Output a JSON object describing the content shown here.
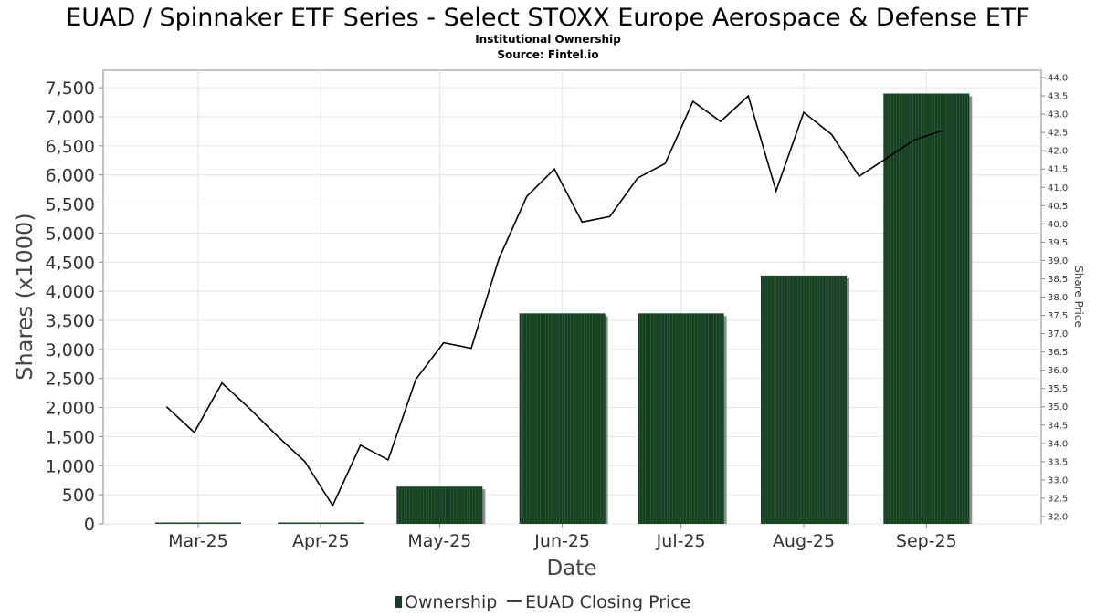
{
  "chart_data": {
    "type": "bar",
    "title": "EUAD / Spinnaker ETF Series - Select STOXX Europe Aerospace & Defense ETF",
    "subtitle_1": "Institutional Ownership",
    "subtitle_2": "Source: Fintel.io",
    "xlabel": "Date",
    "ylabel": "Shares (x1000)",
    "y2label": "Share Price",
    "ylim": [
      0,
      7800
    ],
    "y2lim": [
      31.8,
      44.2
    ],
    "y_ticks": [
      0,
      500,
      1000,
      1500,
      2000,
      2500,
      3000,
      3500,
      4000,
      4500,
      5000,
      5500,
      6000,
      6500,
      7000,
      7500
    ],
    "y_tick_labels": [
      "0",
      "500",
      "1,000",
      "1,500",
      "2,000",
      "2,500",
      "3,000",
      "3,500",
      "4,000",
      "4,500",
      "5,000",
      "5,500",
      "6,000",
      "6,500",
      "7,000",
      "7,500"
    ],
    "y2_ticks": [
      32.0,
      32.5,
      33.0,
      33.5,
      34.0,
      34.5,
      35.0,
      35.5,
      36.0,
      36.5,
      37.0,
      37.5,
      38.0,
      38.5,
      39.0,
      39.5,
      40.0,
      40.5,
      41.0,
      41.5,
      42.0,
      42.5,
      43.0,
      43.5,
      44.0
    ],
    "y2_tick_labels": [
      "32.0",
      "32.5",
      "33.0",
      "33.5",
      "34.0",
      "34.5",
      "35.0",
      "35.5",
      "36.0",
      "36.5",
      "37.0",
      "37.5",
      "38.0",
      "38.5",
      "39.0",
      "39.5",
      "40.0",
      "40.5",
      "41.0",
      "41.5",
      "42.0",
      "42.5",
      "43.0",
      "43.5",
      "44.0"
    ],
    "xlim": [
      "2025-02-05",
      "2025-09-30"
    ],
    "x_ticks": [
      "2025-03-01",
      "2025-04-01",
      "2025-05-01",
      "2025-06-01",
      "2025-07-01",
      "2025-08-01",
      "2025-09-01"
    ],
    "x_tick_labels": [
      "Mar-25",
      "Apr-25",
      "May-25",
      "Jun-25",
      "Jul-25",
      "Aug-25",
      "Sep-25"
    ],
    "grid": true,
    "legend_position": "bottom-center",
    "series": [
      {
        "name": "Ownership",
        "kind": "bar",
        "color": "#173f22",
        "x": [
          "2025-03-01",
          "2025-04-01",
          "2025-05-01",
          "2025-06-01",
          "2025-07-01",
          "2025-08-01",
          "2025-09-01"
        ],
        "values": [
          5,
          5,
          640,
          3620,
          3620,
          4270,
          7400
        ]
      },
      {
        "name": "EUAD Closing Price",
        "kind": "line",
        "axis": "right",
        "color": "#000000",
        "x": [
          "2025-02-21",
          "2025-02-28",
          "2025-03-07",
          "2025-03-14",
          "2025-03-21",
          "2025-03-28",
          "2025-04-04",
          "2025-04-11",
          "2025-04-18",
          "2025-04-25",
          "2025-05-02",
          "2025-05-09",
          "2025-05-16",
          "2025-05-23",
          "2025-05-30",
          "2025-06-06",
          "2025-06-13",
          "2025-06-20",
          "2025-06-27",
          "2025-07-04",
          "2025-07-11",
          "2025-07-18",
          "2025-07-25",
          "2025-08-01",
          "2025-08-08",
          "2025-08-15",
          "2025-08-22",
          "2025-08-29",
          "2025-09-05"
        ],
        "values": [
          35.0,
          34.3,
          35.65,
          34.95,
          34.2,
          33.5,
          32.3,
          33.95,
          33.55,
          35.75,
          36.75,
          36.6,
          39.05,
          40.75,
          41.5,
          40.05,
          40.2,
          41.25,
          41.65,
          43.35,
          42.8,
          43.5,
          40.9,
          43.05,
          42.45,
          41.3,
          41.8,
          42.3,
          42.55
        ]
      }
    ]
  },
  "legend": {
    "items": [
      {
        "label": "Ownership",
        "color": "#173f22"
      },
      {
        "label": "EUAD Closing Price",
        "color": "#000000"
      }
    ]
  }
}
